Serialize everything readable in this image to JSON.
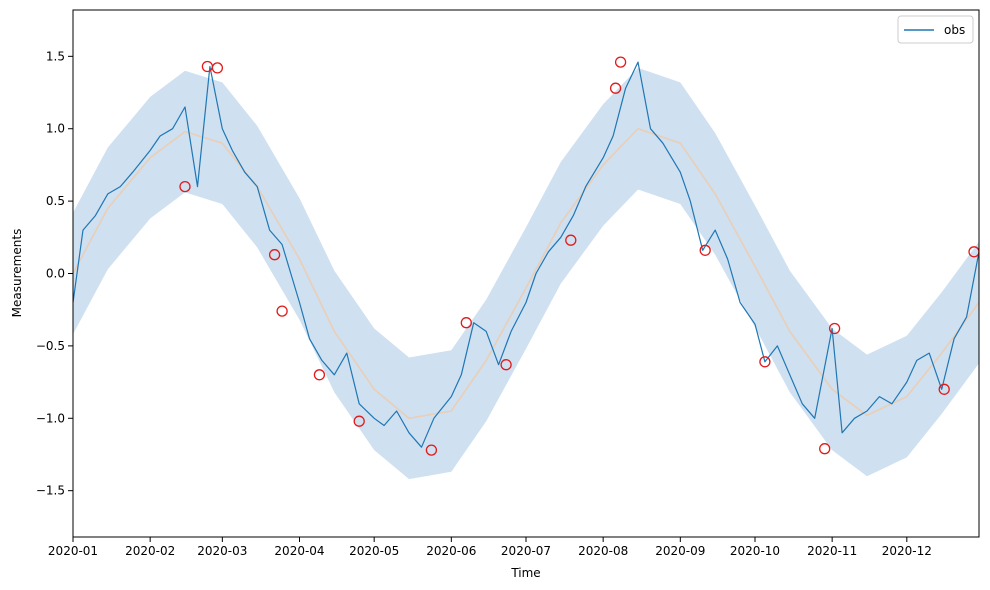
{
  "chart_data": {
    "type": "line",
    "xlabel": "Time",
    "ylabel": "Measurements",
    "x_range": [
      "2020-01-01",
      "2020-12-30"
    ],
    "ylim": [
      -1.82,
      1.82
    ],
    "x_ticks": [
      "2020-01-01",
      "2020-02-01",
      "2020-03-01",
      "2020-04-01",
      "2020-05-01",
      "2020-06-01",
      "2020-07-01",
      "2020-08-01",
      "2020-09-01",
      "2020-10-01",
      "2020-11-01",
      "2020-12-01"
    ],
    "x_tick_labels": [
      "2020-01",
      "2020-02",
      "2020-03",
      "2020-04",
      "2020-05",
      "2020-06",
      "2020-07",
      "2020-08",
      "2020-09",
      "2020-10",
      "2020-11",
      "2020-12"
    ],
    "y_ticks": [
      -1.5,
      -1.0,
      -0.5,
      0.0,
      0.5,
      1.0,
      1.5
    ],
    "y_tick_labels": [
      "−1.5",
      "−1.0",
      "−0.5",
      "0.0",
      "0.5",
      "1.0",
      "1.5"
    ],
    "legend": {
      "position": "top-right",
      "entries": [
        "obs"
      ]
    },
    "grid": false,
    "colors": {
      "obs": "#1f77b4",
      "band": "#c7dbee",
      "smooth": "#f0c9a8",
      "anomaly": "#e11b1b"
    },
    "series": [
      {
        "name": "obs",
        "x": [
          "2020-01-01",
          "2020-01-05",
          "2020-01-10",
          "2020-01-15",
          "2020-01-20",
          "2020-01-25",
          "2020-02-01",
          "2020-02-05",
          "2020-02-10",
          "2020-02-15",
          "2020-02-20",
          "2020-02-25",
          "2020-03-01",
          "2020-03-05",
          "2020-03-10",
          "2020-03-15",
          "2020-03-20",
          "2020-03-25",
          "2020-04-01",
          "2020-04-05",
          "2020-04-10",
          "2020-04-15",
          "2020-04-20",
          "2020-04-25",
          "2020-05-01",
          "2020-05-05",
          "2020-05-10",
          "2020-05-15",
          "2020-05-20",
          "2020-05-25",
          "2020-06-01",
          "2020-06-05",
          "2020-06-10",
          "2020-06-15",
          "2020-06-20",
          "2020-06-25",
          "2020-07-01",
          "2020-07-05",
          "2020-07-10",
          "2020-07-15",
          "2020-07-20",
          "2020-07-25",
          "2020-08-01",
          "2020-08-05",
          "2020-08-10",
          "2020-08-15",
          "2020-08-20",
          "2020-08-25",
          "2020-09-01",
          "2020-09-05",
          "2020-09-10",
          "2020-09-15",
          "2020-09-20",
          "2020-09-25",
          "2020-10-01",
          "2020-10-05",
          "2020-10-10",
          "2020-10-15",
          "2020-10-20",
          "2020-10-25",
          "2020-11-01",
          "2020-11-05",
          "2020-11-10",
          "2020-11-15",
          "2020-11-20",
          "2020-11-25",
          "2020-12-01",
          "2020-12-05",
          "2020-12-10",
          "2020-12-15",
          "2020-12-20",
          "2020-12-25",
          "2020-12-30"
        ],
        "y": [
          -0.2,
          0.3,
          0.4,
          0.55,
          0.6,
          0.7,
          0.85,
          0.95,
          1.0,
          1.15,
          0.6,
          1.43,
          1.0,
          0.85,
          0.7,
          0.6,
          0.3,
          0.2,
          -0.2,
          -0.45,
          -0.6,
          -0.7,
          -0.55,
          -0.9,
          -1.0,
          -1.05,
          -0.95,
          -1.1,
          -1.2,
          -1.0,
          -0.85,
          -0.7,
          -0.34,
          -0.4,
          -0.63,
          -0.4,
          -0.2,
          0.0,
          0.15,
          0.25,
          0.4,
          0.6,
          0.8,
          0.95,
          1.28,
          1.46,
          1.0,
          0.9,
          0.7,
          0.5,
          0.16,
          0.3,
          0.1,
          -0.2,
          -0.35,
          -0.61,
          -0.5,
          -0.7,
          -0.9,
          -1.0,
          -0.38,
          -1.1,
          -1.0,
          -0.95,
          -0.85,
          -0.9,
          -0.75,
          -0.6,
          -0.55,
          -0.8,
          -0.45,
          -0.3,
          0.15
        ]
      }
    ],
    "smooth_series": {
      "x": [
        "2020-01-01",
        "2020-01-15",
        "2020-02-01",
        "2020-02-15",
        "2020-03-01",
        "2020-03-15",
        "2020-04-01",
        "2020-04-15",
        "2020-05-01",
        "2020-05-15",
        "2020-06-01",
        "2020-06-15",
        "2020-07-01",
        "2020-07-15",
        "2020-08-01",
        "2020-08-15",
        "2020-09-01",
        "2020-09-15",
        "2020-10-01",
        "2020-10-15",
        "2020-11-01",
        "2020-11-15",
        "2020-12-01",
        "2020-12-15",
        "2020-12-30"
      ],
      "y": [
        0.0,
        0.45,
        0.8,
        0.98,
        0.9,
        0.6,
        0.1,
        -0.4,
        -0.8,
        -1.0,
        -0.95,
        -0.6,
        -0.1,
        0.35,
        0.75,
        1.0,
        0.9,
        0.55,
        0.05,
        -0.4,
        -0.8,
        -0.98,
        -0.85,
        -0.55,
        -0.2
      ]
    },
    "band_halfwidth": 0.42,
    "anomalies": [
      {
        "x": "2020-02-15",
        "y": 0.6
      },
      {
        "x": "2020-02-24",
        "y": 1.43
      },
      {
        "x": "2020-02-28",
        "y": 1.42
      },
      {
        "x": "2020-03-22",
        "y": 0.13
      },
      {
        "x": "2020-03-25",
        "y": -0.26
      },
      {
        "x": "2020-04-09",
        "y": -0.7
      },
      {
        "x": "2020-04-25",
        "y": -1.02
      },
      {
        "x": "2020-05-24",
        "y": -1.22
      },
      {
        "x": "2020-06-07",
        "y": -0.34
      },
      {
        "x": "2020-06-23",
        "y": -0.63
      },
      {
        "x": "2020-07-19",
        "y": 0.23
      },
      {
        "x": "2020-08-06",
        "y": 1.28
      },
      {
        "x": "2020-08-08",
        "y": 1.46
      },
      {
        "x": "2020-09-11",
        "y": 0.16
      },
      {
        "x": "2020-10-05",
        "y": -0.61
      },
      {
        "x": "2020-10-29",
        "y": -1.21
      },
      {
        "x": "2020-11-02",
        "y": -0.38
      },
      {
        "x": "2020-12-16",
        "y": -0.8
      },
      {
        "x": "2020-12-28",
        "y": 0.15
      }
    ]
  }
}
